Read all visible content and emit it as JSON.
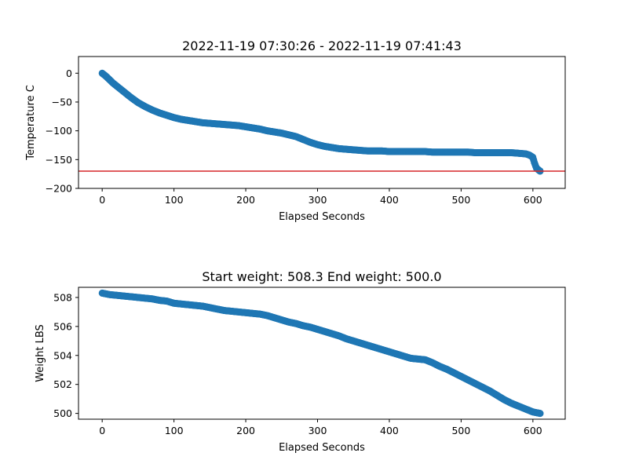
{
  "chart_data": [
    {
      "type": "scatter",
      "title": "2022-11-19 07:30:26 - 2022-11-19 07:41:43",
      "xlabel": "Elapsed Seconds",
      "ylabel": "Temperature C",
      "xlim": [
        -33,
        645
      ],
      "ylim": [
        -200,
        29
      ],
      "xticks": [
        0,
        100,
        200,
        300,
        400,
        500,
        600
      ],
      "yticks": [
        0,
        -50,
        -100,
        -150,
        -200
      ],
      "marker_color": "#1f77b4",
      "hline": {
        "y": -170,
        "color": "#d62728"
      },
      "x": [
        0,
        5,
        10,
        15,
        20,
        25,
        30,
        40,
        50,
        60,
        70,
        80,
        90,
        100,
        110,
        120,
        130,
        140,
        150,
        160,
        170,
        180,
        190,
        200,
        210,
        220,
        230,
        240,
        250,
        260,
        270,
        280,
        290,
        300,
        310,
        320,
        330,
        340,
        350,
        360,
        370,
        380,
        390,
        400,
        410,
        420,
        430,
        440,
        450,
        460,
        470,
        480,
        490,
        500,
        510,
        520,
        530,
        540,
        550,
        560,
        570,
        580,
        590,
        595,
        600,
        602,
        605,
        608,
        610
      ],
      "y": [
        0,
        -5,
        -11,
        -17,
        -22,
        -27,
        -32,
        -42,
        -51,
        -58,
        -64,
        -69,
        -73,
        -77,
        -80,
        -82,
        -84,
        -86,
        -87,
        -88,
        -89,
        -90,
        -91,
        -93,
        -95,
        -97,
        -100,
        -102,
        -104,
        -107,
        -110,
        -115,
        -120,
        -124,
        -127,
        -129,
        -131,
        -132,
        -133,
        -134,
        -135,
        -135,
        -135,
        -136,
        -136,
        -136,
        -136,
        -136,
        -136,
        -137,
        -137,
        -137,
        -137,
        -137,
        -137,
        -138,
        -138,
        -138,
        -138,
        -138,
        -138,
        -139,
        -140,
        -142,
        -146,
        -155,
        -165,
        -168,
        -170
      ]
    },
    {
      "type": "scatter",
      "title": "Start weight: 508.3 End weight: 500.0",
      "xlabel": "Elapsed Seconds",
      "ylabel": "Weight LBS",
      "xlim": [
        -33,
        645
      ],
      "ylim": [
        499.6,
        508.7
      ],
      "xticks": [
        0,
        100,
        200,
        300,
        400,
        500,
        600
      ],
      "yticks": [
        500,
        502,
        504,
        506,
        508
      ],
      "marker_color": "#1f77b4",
      "x": [
        0,
        10,
        20,
        30,
        40,
        50,
        60,
        70,
        80,
        90,
        100,
        110,
        120,
        130,
        140,
        150,
        160,
        170,
        180,
        190,
        200,
        210,
        220,
        230,
        240,
        250,
        260,
        270,
        280,
        290,
        300,
        310,
        320,
        330,
        340,
        350,
        360,
        370,
        380,
        390,
        400,
        410,
        420,
        430,
        440,
        450,
        460,
        470,
        480,
        490,
        500,
        510,
        520,
        530,
        540,
        550,
        560,
        570,
        580,
        590,
        600,
        610
      ],
      "y": [
        508.3,
        508.2,
        508.15,
        508.1,
        508.05,
        508.0,
        507.95,
        507.9,
        507.8,
        507.75,
        507.6,
        507.55,
        507.5,
        507.45,
        507.4,
        507.3,
        507.2,
        507.1,
        507.05,
        507.0,
        506.95,
        506.9,
        506.85,
        506.75,
        506.6,
        506.45,
        506.3,
        506.2,
        506.05,
        505.95,
        505.8,
        505.65,
        505.5,
        505.35,
        505.15,
        505.0,
        504.85,
        504.7,
        504.55,
        504.4,
        504.25,
        504.1,
        503.95,
        503.8,
        503.75,
        503.7,
        503.5,
        503.25,
        503.05,
        502.8,
        502.55,
        502.3,
        502.05,
        501.8,
        501.55,
        501.25,
        500.95,
        500.7,
        500.5,
        500.3,
        500.1,
        500.0
      ]
    }
  ]
}
